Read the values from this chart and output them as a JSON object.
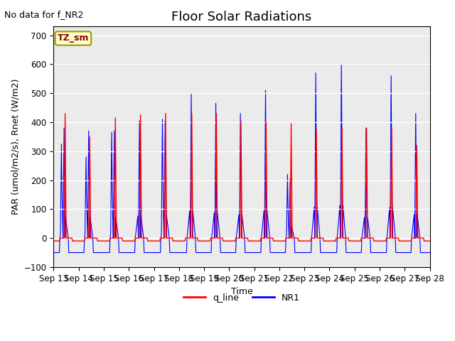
{
  "title": "Floor Solar Radiations",
  "xlabel": "Time",
  "ylabel": "PAR (umol/m2/s), Rnet (W/m2)",
  "annotation_text": "No data for f_NR2",
  "legend_label_text": "TZ_sm",
  "legend_line_labels": [
    "q_line",
    "NR1"
  ],
  "ylim": [
    -100,
    730
  ],
  "yticks": [
    -100,
    0,
    100,
    200,
    300,
    400,
    500,
    600,
    700
  ],
  "x_tick_labels": [
    "Sep 13",
    "Sep 14",
    "Sep 15",
    "Sep 16",
    "Sep 17",
    "Sep 18",
    "Sep 19",
    "Sep 20",
    "Sep 21",
    "Sep 22",
    "Sep 23",
    "Sep 24",
    "Sep 25",
    "Sep 26",
    "Sep 27",
    "Sep 28"
  ],
  "background_color": "#ebebeb",
  "line_color_red": "red",
  "line_color_blue": "blue",
  "title_fontsize": 13,
  "label_fontsize": 9,
  "tick_fontsize": 8.5
}
